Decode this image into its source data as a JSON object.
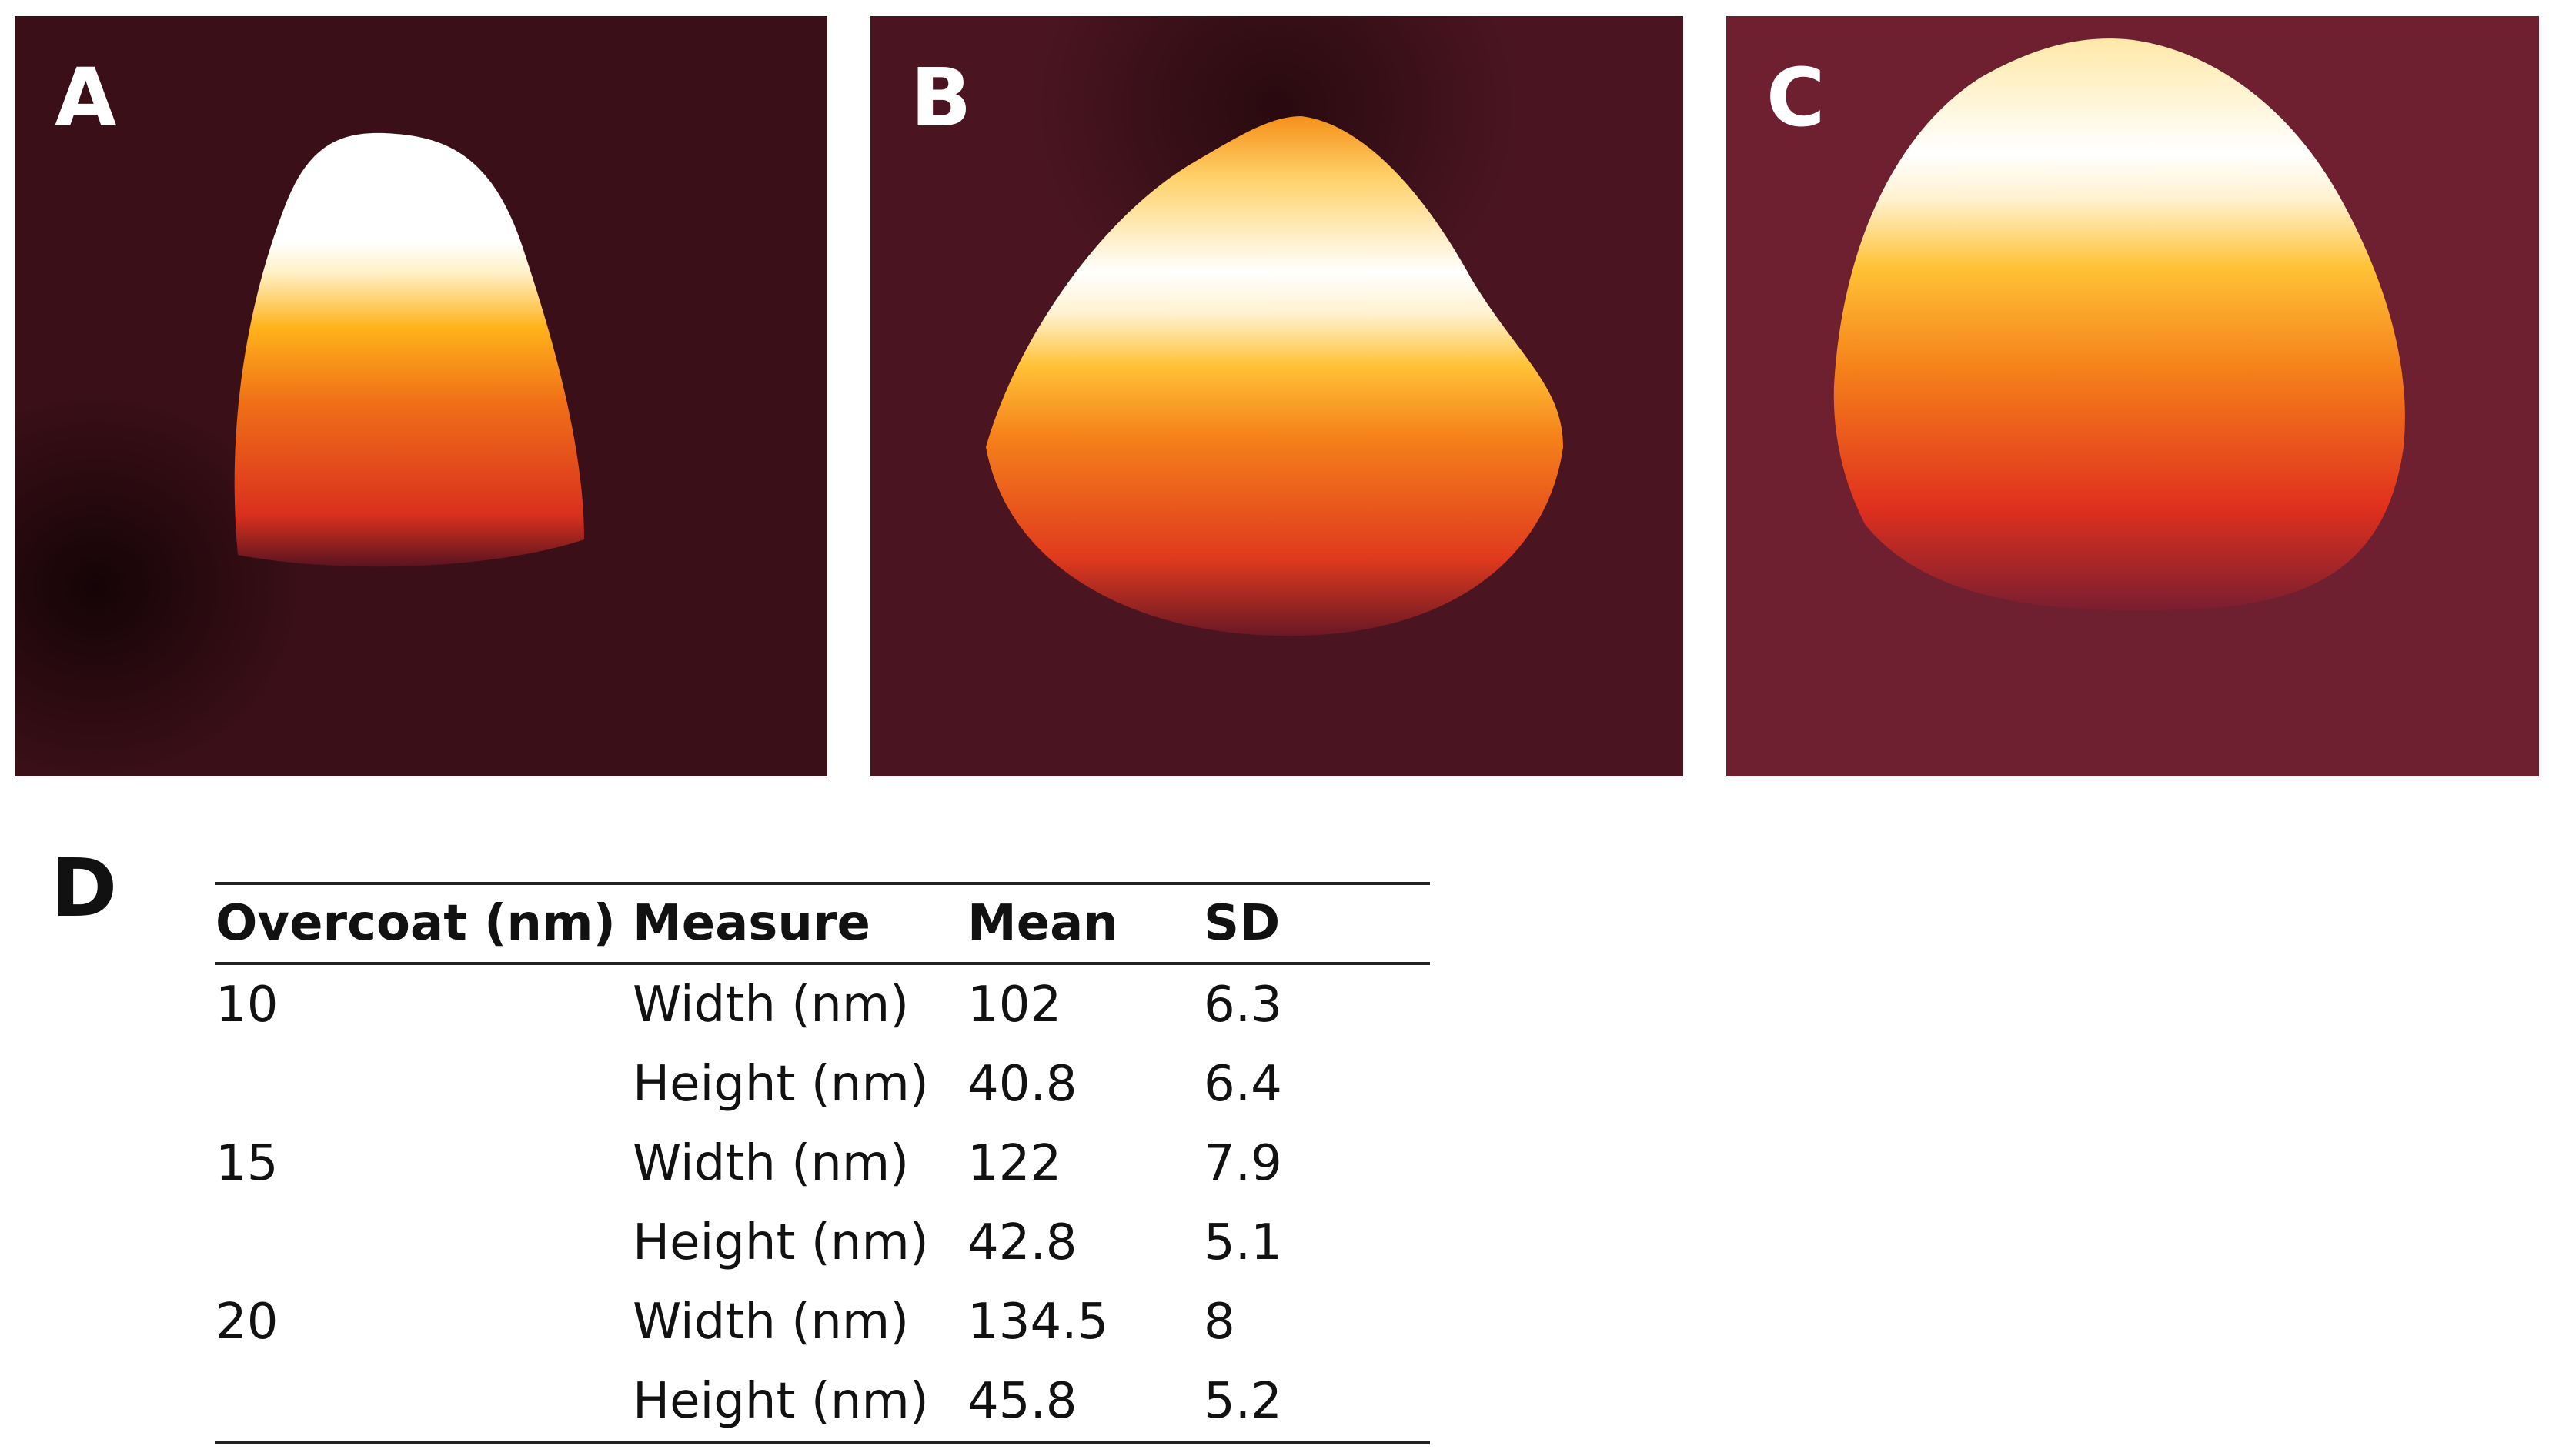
{
  "panels": [
    {
      "label": "A",
      "colors": {
        "background": "#3a0f17",
        "mid": "#d9301e",
        "high": "#ffb21a",
        "peak": "#ffffff"
      }
    },
    {
      "label": "B",
      "colors": {
        "background": "#4a1521",
        "mid": "#d9301e",
        "high": "#ffb21a",
        "peak": "#ffffff"
      }
    },
    {
      "label": "C",
      "colors": {
        "background": "#6e1f30",
        "mid": "#d9301e",
        "high": "#ffb21a",
        "peak": "#ffffff"
      }
    }
  ],
  "table_label": "D",
  "table": {
    "headers": [
      "Overcoat (nm)",
      "Measure",
      "Mean",
      "SD"
    ],
    "rows": [
      {
        "overcoat": "10",
        "measure": "Width (nm)",
        "mean": "102",
        "sd": "6.3"
      },
      {
        "overcoat": "",
        "measure": "Height (nm)",
        "mean": "40.8",
        "sd": "6.4"
      },
      {
        "overcoat": "15",
        "measure": "Width (nm)",
        "mean": "122",
        "sd": "7.9"
      },
      {
        "overcoat": "",
        "measure": "Height (nm)",
        "mean": "42.8",
        "sd": "5.1"
      },
      {
        "overcoat": "20",
        "measure": "Width (nm)",
        "mean": "134.5",
        "sd": "8"
      },
      {
        "overcoat": "",
        "measure": "Height (nm)",
        "mean": "45.8",
        "sd": "5.2"
      }
    ]
  }
}
